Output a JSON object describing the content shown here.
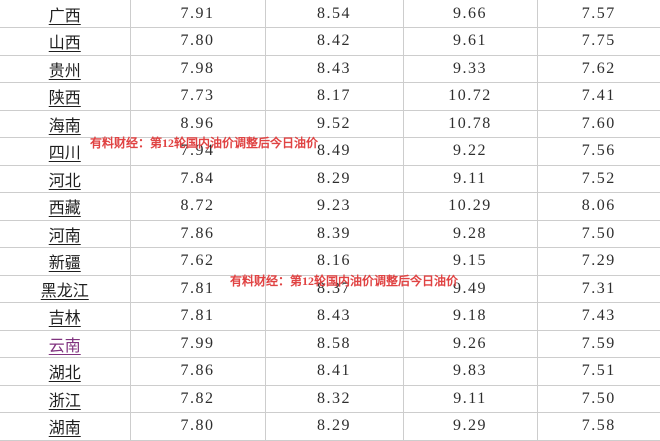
{
  "watermarks": [
    {
      "text": "有料财经：第12轮国内油价调整后今日油价",
      "color": "#e04343"
    },
    {
      "text": "有料财经：第12轮国内油价调整后今日油价",
      "color": "#e04343"
    }
  ],
  "colors": {
    "grid_line": "#cdcdcd",
    "text": "#2b2b2b",
    "province_link": "#1f1f1f",
    "visited_link": "#80337f",
    "watermark": "#e04343"
  },
  "table": {
    "rows": [
      {
        "province": "广西",
        "values": [
          "7.91",
          "8.54",
          "9.66",
          "7.57"
        ]
      },
      {
        "province": "山西",
        "values": [
          "7.80",
          "8.42",
          "9.61",
          "7.75"
        ]
      },
      {
        "province": "贵州",
        "values": [
          "7.98",
          "8.43",
          "9.33",
          "7.62"
        ]
      },
      {
        "province": "陕西",
        "values": [
          "7.73",
          "8.17",
          "10.72",
          "7.41"
        ]
      },
      {
        "province": "海南",
        "values": [
          "8.96",
          "9.52",
          "10.78",
          "7.60"
        ]
      },
      {
        "province": "四川",
        "values": [
          "7.94",
          "8.49",
          "9.22",
          "7.56"
        ]
      },
      {
        "province": "河北",
        "values": [
          "7.84",
          "8.29",
          "9.11",
          "7.52"
        ]
      },
      {
        "province": "西藏",
        "values": [
          "8.72",
          "9.23",
          "10.29",
          "8.06"
        ]
      },
      {
        "province": "河南",
        "values": [
          "7.86",
          "8.39",
          "9.28",
          "7.50"
        ]
      },
      {
        "province": "新疆",
        "values": [
          "7.62",
          "8.16",
          "9.15",
          "7.29"
        ]
      },
      {
        "province": "黑龙江",
        "values": [
          "7.81",
          "8.37",
          "9.49",
          "7.31"
        ]
      },
      {
        "province": "吉林",
        "values": [
          "7.81",
          "8.43",
          "9.18",
          "7.43"
        ]
      },
      {
        "province": "云南",
        "values": [
          "7.99",
          "8.58",
          "9.26",
          "7.59"
        ],
        "visited": true
      },
      {
        "province": "湖北",
        "values": [
          "7.86",
          "8.41",
          "9.83",
          "7.51"
        ]
      },
      {
        "province": "浙江",
        "values": [
          "7.82",
          "8.32",
          "9.11",
          "7.50"
        ]
      },
      {
        "province": "湖南",
        "values": [
          "7.80",
          "8.29",
          "9.29",
          "7.58"
        ]
      }
    ]
  }
}
